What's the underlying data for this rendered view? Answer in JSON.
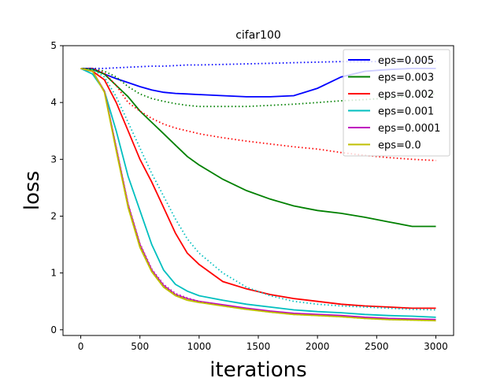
{
  "chart_data": {
    "type": "line",
    "title": "cifar100",
    "xlabel": "iterations",
    "ylabel": "loss",
    "xlim": [
      -150,
      3150
    ],
    "ylim": [
      -0.1,
      5.0
    ],
    "xticks": [
      0,
      500,
      1000,
      1500,
      2000,
      2500,
      3000
    ],
    "yticks": [
      0,
      1,
      2,
      3,
      4,
      5
    ],
    "grid": false,
    "legend_position": "top-right",
    "line_styles": {
      "solid": "training loss",
      "dotted": "test loss"
    },
    "x": [
      0,
      100,
      200,
      300,
      400,
      500,
      600,
      700,
      800,
      900,
      1000,
      1200,
      1400,
      1600,
      1800,
      2000,
      2200,
      2400,
      2600,
      2800,
      3000
    ],
    "series": [
      {
        "name": "eps=0.005",
        "color": "#0000ff",
        "values": [
          4.6,
          4.6,
          4.5,
          4.42,
          4.35,
          4.28,
          4.22,
          4.18,
          4.16,
          4.15,
          4.14,
          4.12,
          4.1,
          4.1,
          4.12,
          4.25,
          4.45,
          4.55,
          4.58,
          4.6,
          4.6
        ],
        "dotted": [
          4.6,
          4.6,
          4.6,
          4.61,
          4.62,
          4.63,
          4.64,
          4.64,
          4.65,
          4.66,
          4.66,
          4.67,
          4.68,
          4.69,
          4.7,
          4.71,
          4.72,
          4.72,
          4.72,
          4.73,
          4.73
        ]
      },
      {
        "name": "eps=0.003",
        "color": "#008000",
        "values": [
          4.6,
          4.58,
          4.5,
          4.3,
          4.1,
          3.85,
          3.65,
          3.45,
          3.25,
          3.05,
          2.9,
          2.65,
          2.45,
          2.3,
          2.18,
          2.1,
          2.05,
          1.98,
          1.9,
          1.82,
          1.82
        ],
        "dotted": [
          4.6,
          4.6,
          4.55,
          4.45,
          4.28,
          4.15,
          4.07,
          4.02,
          3.98,
          3.95,
          3.93,
          3.93,
          3.93,
          3.95,
          3.97,
          4.0,
          4.03,
          4.05,
          4.08,
          4.12,
          4.15
        ]
      },
      {
        "name": "eps=0.002",
        "color": "#ff0000",
        "values": [
          4.6,
          4.55,
          4.4,
          4.0,
          3.5,
          3.0,
          2.6,
          2.15,
          1.7,
          1.35,
          1.15,
          0.85,
          0.72,
          0.62,
          0.55,
          0.5,
          0.45,
          0.42,
          0.4,
          0.38,
          0.38
        ],
        "dotted": [
          4.6,
          4.6,
          4.52,
          4.3,
          4.0,
          3.85,
          3.72,
          3.62,
          3.55,
          3.5,
          3.45,
          3.38,
          3.32,
          3.27,
          3.22,
          3.18,
          3.12,
          3.07,
          3.03,
          3.0,
          2.98
        ]
      },
      {
        "name": "eps=0.001",
        "color": "#00bfbf",
        "values": [
          4.6,
          4.5,
          4.2,
          3.5,
          2.7,
          2.1,
          1.5,
          1.05,
          0.8,
          0.68,
          0.6,
          0.52,
          0.45,
          0.4,
          0.35,
          0.32,
          0.3,
          0.27,
          0.25,
          0.24,
          0.22
        ],
        "dotted": [
          4.6,
          4.58,
          4.45,
          4.1,
          3.65,
          3.2,
          2.75,
          2.35,
          1.95,
          1.6,
          1.35,
          1.0,
          0.75,
          0.6,
          0.5,
          0.45,
          0.42,
          0.4,
          0.38,
          0.36,
          0.35
        ]
      },
      {
        "name": "eps=0.0001",
        "color": "#bf00bf",
        "values": [
          4.6,
          4.55,
          4.2,
          3.2,
          2.2,
          1.5,
          1.05,
          0.78,
          0.62,
          0.55,
          0.5,
          0.44,
          0.38,
          0.33,
          0.29,
          0.27,
          0.25,
          0.22,
          0.2,
          0.19,
          0.18
        ],
        "dotted": [
          4.6,
          4.55,
          4.2,
          3.22,
          2.22,
          1.52,
          1.07,
          0.8,
          0.64,
          0.56,
          0.5,
          0.43,
          0.37,
          0.32,
          0.28,
          0.26,
          0.24,
          0.21,
          0.19,
          0.18,
          0.17
        ]
      },
      {
        "name": "eps=0.0",
        "color": "#bfbf00",
        "values": [
          4.6,
          4.55,
          4.18,
          3.15,
          2.15,
          1.45,
          1.02,
          0.75,
          0.6,
          0.52,
          0.48,
          0.42,
          0.36,
          0.31,
          0.27,
          0.25,
          0.23,
          0.2,
          0.18,
          0.17,
          0.16
        ],
        "dotted": [
          4.6,
          4.55,
          4.2,
          3.2,
          2.2,
          1.5,
          1.04,
          0.77,
          0.62,
          0.54,
          0.49,
          0.42,
          0.36,
          0.31,
          0.27,
          0.25,
          0.23,
          0.2,
          0.18,
          0.17,
          0.16
        ]
      }
    ]
  }
}
